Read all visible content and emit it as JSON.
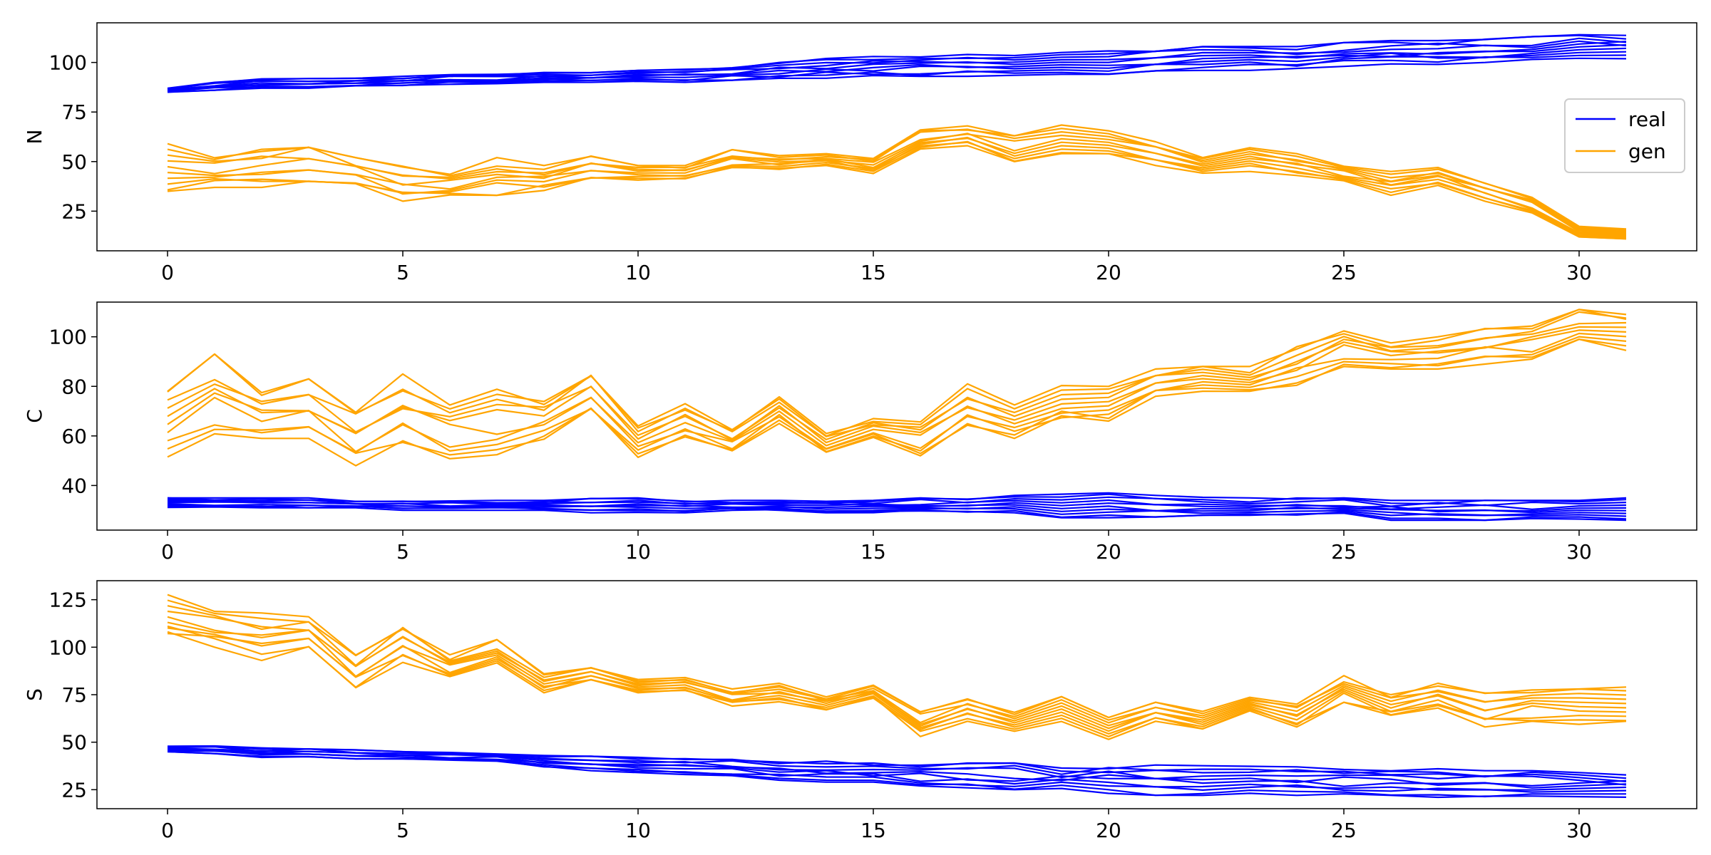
{
  "colors": {
    "real": "#0000ff",
    "gen": "#ffa500",
    "axes": "#000000"
  },
  "legend": {
    "placement": "right",
    "entries": [
      {
        "label": "real",
        "color": "#0000ff"
      },
      {
        "label": "gen",
        "color": "#ffa500"
      }
    ]
  },
  "chart_data": [
    {
      "type": "line",
      "ylabel": "N",
      "xlim": [
        -1.5,
        32.5
      ],
      "ylim": [
        5,
        120
      ],
      "xticks": [
        0,
        5,
        10,
        15,
        20,
        25,
        30
      ],
      "yticks": [
        25,
        50,
        75,
        100
      ],
      "grid": false,
      "real_band": {
        "low": [
          85,
          86,
          87,
          87,
          88,
          88,
          89,
          89,
          90,
          90,
          90,
          90,
          91,
          92,
          92,
          93,
          93,
          93,
          93,
          94,
          94,
          95,
          95,
          96,
          97,
          98,
          99,
          99,
          100,
          100,
          101,
          101
        ],
        "high": [
          87,
          90,
          92,
          92,
          92,
          93,
          94,
          94,
          95,
          95,
          96,
          97,
          98,
          100,
          102,
          103,
          104,
          104,
          104,
          105,
          106,
          107,
          108,
          108,
          108,
          110,
          111,
          111,
          112,
          113,
          114,
          115
        ]
      },
      "gen_band": {
        "low": [
          35,
          37,
          37,
          38,
          38,
          30,
          32,
          33,
          35,
          40,
          40,
          41,
          46,
          46,
          48,
          44,
          55,
          58,
          50,
          54,
          54,
          48,
          44,
          45,
          43,
          40,
          33,
          38,
          30,
          24,
          12,
          11
        ],
        "high": [
          59,
          53,
          57,
          59,
          52,
          49,
          45,
          52,
          48,
          54,
          48,
          48,
          56,
          53,
          54,
          52,
          66,
          68,
          63,
          69,
          66,
          60,
          52,
          57,
          54,
          48,
          45,
          47,
          40,
          32,
          18,
          16
        ]
      },
      "gen_guide": [
        42,
        42,
        46,
        48,
        48,
        42,
        42,
        43,
        45,
        47,
        45,
        46,
        50,
        49,
        50,
        48,
        61,
        64,
        57,
        62,
        60,
        55,
        48,
        51,
        47,
        43,
        39,
        43,
        35,
        27,
        14,
        13
      ]
    },
    {
      "type": "line",
      "ylabel": "C",
      "xlim": [
        -1.5,
        32.5
      ],
      "ylim": [
        22,
        114
      ],
      "xticks": [
        0,
        5,
        10,
        15,
        20,
        25,
        30
      ],
      "yticks": [
        40,
        60,
        80,
        100
      ],
      "grid": false,
      "real_band": {
        "low": [
          31,
          31,
          31,
          31,
          31,
          30,
          30,
          30,
          30,
          29,
          29,
          29,
          30,
          30,
          29,
          29,
          29,
          29,
          28,
          27,
          27,
          27,
          28,
          28,
          28,
          28,
          26,
          26,
          26,
          26,
          26,
          26
        ],
        "high": [
          35,
          35,
          35,
          35,
          34,
          34,
          34,
          34,
          34,
          35,
          35,
          34,
          34,
          34,
          34,
          34,
          35,
          35,
          36,
          37,
          37,
          36,
          36,
          35,
          35,
          35,
          34,
          34,
          34,
          34,
          34,
          35
        ]
      },
      "gen_band": {
        "low": [
          51,
          60,
          59,
          59,
          48,
          55,
          49,
          52,
          58,
          69,
          51,
          59,
          54,
          65,
          53,
          59,
          52,
          64,
          59,
          66,
          66,
          76,
          77,
          78,
          80,
          88,
          87,
          87,
          89,
          91,
          99,
          94
        ],
        "high": [
          78,
          93,
          79,
          83,
          73,
          85,
          76,
          80,
          75,
          86,
          64,
          73,
          63,
          76,
          61,
          67,
          67,
          81,
          74,
          82,
          80,
          87,
          88,
          88,
          96,
          104,
          98,
          100,
          104,
          105,
          111,
          109
        ]
      },
      "gen_guide": [
        60,
        70,
        65,
        68,
        56,
        68,
        60,
        64,
        66,
        79,
        59,
        66,
        59,
        70,
        57,
        62,
        58,
        71,
        64,
        72,
        71,
        80,
        81,
        82,
        87,
        96,
        93,
        93,
        96,
        98,
        104,
        101
      ]
    },
    {
      "type": "line",
      "ylabel": "S",
      "xlim": [
        -1.5,
        32.5
      ],
      "ylim": [
        15,
        135
      ],
      "xticks": [
        0,
        5,
        10,
        15,
        20,
        25,
        30
      ],
      "yticks": [
        25,
        50,
        75,
        100,
        125
      ],
      "grid": false,
      "real_band": {
        "low": [
          45,
          44,
          42,
          42,
          41,
          41,
          40,
          40,
          37,
          35,
          34,
          33,
          32,
          30,
          29,
          29,
          27,
          26,
          25,
          24,
          22,
          22,
          22,
          22,
          22,
          22,
          22,
          21,
          21,
          21,
          21,
          20
        ],
        "high": [
          48,
          48,
          47,
          47,
          46,
          45,
          45,
          44,
          43,
          43,
          42,
          42,
          41,
          40,
          40,
          39,
          39,
          39,
          39,
          38,
          38,
          38,
          38,
          38,
          37,
          36,
          36,
          36,
          35,
          35,
          34,
          34
        ]
      },
      "gen_band": {
        "low": [
          105,
          100,
          93,
          100,
          78,
          92,
          84,
          90,
          76,
          82,
          76,
          77,
          69,
          71,
          67,
          73,
          53,
          61,
          55,
          60,
          51,
          61,
          57,
          66,
          58,
          71,
          63,
          68,
          58,
          61,
          57,
          61
        ],
        "high": [
          129,
          120,
          118,
          116,
          96,
          112,
          96,
          104,
          86,
          90,
          83,
          84,
          78,
          81,
          74,
          80,
          66,
          73,
          66,
          74,
          63,
          71,
          67,
          74,
          70,
          85,
          75,
          81,
          76,
          79,
          78,
          79
        ]
      },
      "gen_guide": [
        117,
        110,
        104,
        108,
        87,
        103,
        90,
        98,
        81,
        86,
        80,
        80,
        73,
        76,
        71,
        77,
        60,
        67,
        61,
        67,
        57,
        66,
        62,
        70,
        64,
        78,
        69,
        74,
        66,
        70,
        68,
        70
      ]
    }
  ]
}
